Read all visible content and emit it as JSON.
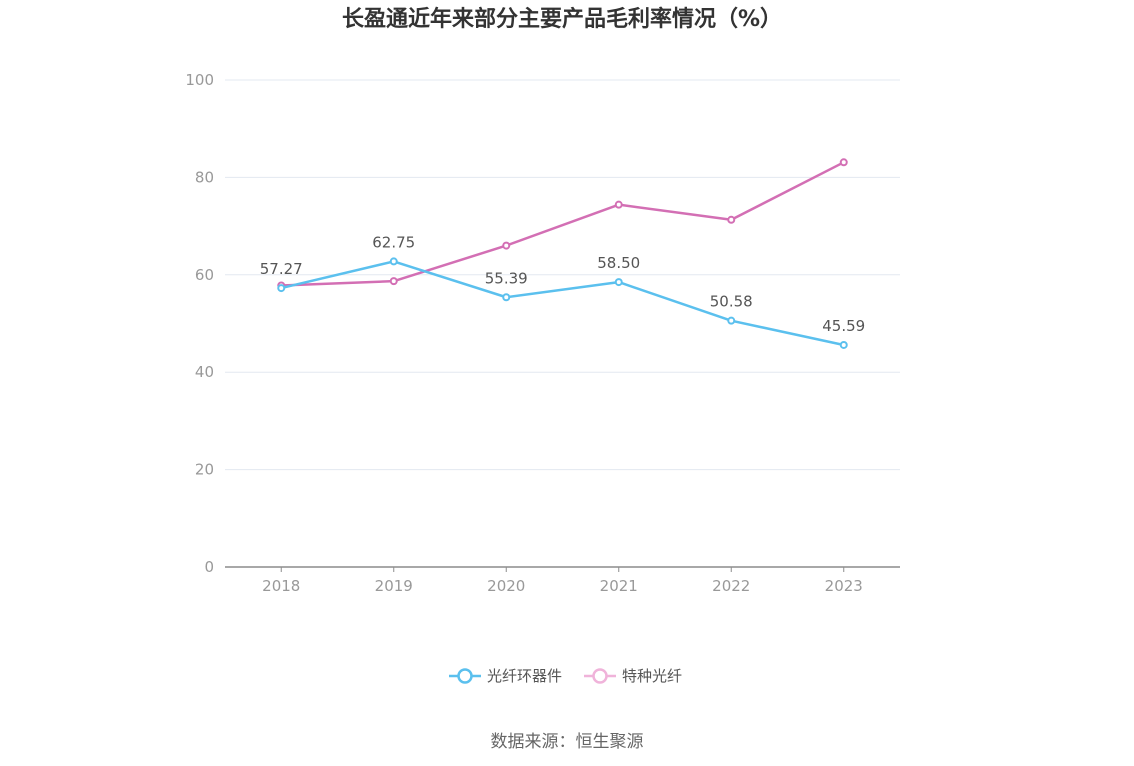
{
  "chart_data": {
    "type": "line",
    "title": "长盈通近年来部分主要产品毛利率情况（%）",
    "x": [
      "2018",
      "2019",
      "2020",
      "2021",
      "2022",
      "2023"
    ],
    "ylim": [
      0,
      100
    ],
    "yticks": [
      0,
      20,
      40,
      60,
      80,
      100
    ],
    "grid": true,
    "legend_position": "bottom-center",
    "series": [
      {
        "name": "光纤环器件",
        "color": "#5bc0ee",
        "values": [
          57.27,
          62.75,
          55.39,
          58.5,
          50.58,
          45.59
        ],
        "labels": [
          "57.27",
          "62.75",
          "55.39",
          "58.50",
          "50.58",
          "45.59"
        ]
      },
      {
        "name": "特种光纤",
        "color": "#d36fb4",
        "legend_color": "#f0b3da",
        "values": [
          57.8,
          58.7,
          66.0,
          74.4,
          71.3,
          83.1
        ],
        "labels": null
      }
    ]
  },
  "source": "数据来源：恒生聚源"
}
